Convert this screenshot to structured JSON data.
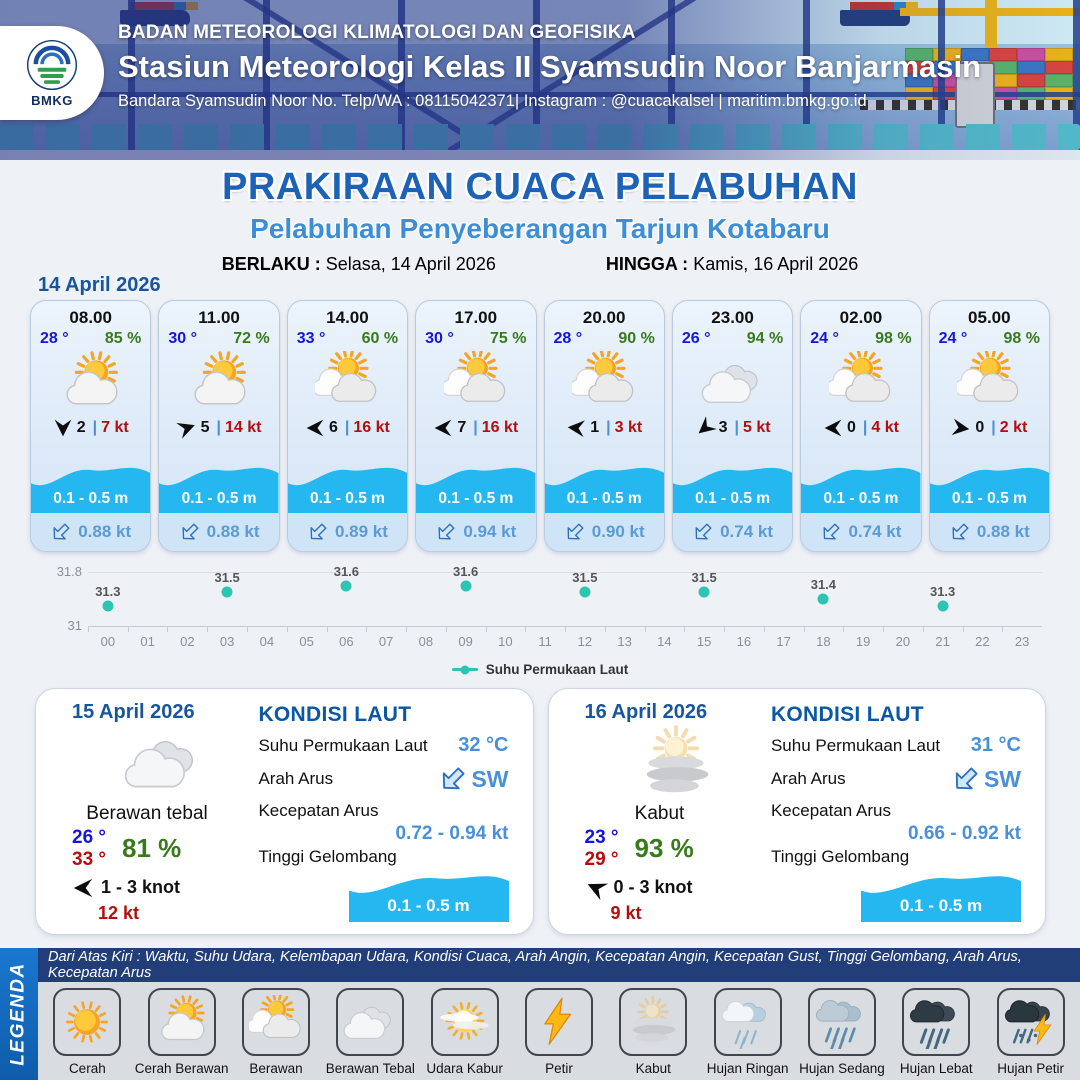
{
  "header": {
    "org": "BADAN METEOROLOGI KLIMATOLOGI DAN GEOFISIKA",
    "station": "Stasiun Meteorologi Kelas II Syamsudin Noor Banjarmasin",
    "contact": "Bandara Syamsudin Noor No. Telp/WA : 08115042371| Instagram : @cuacakalsel | maritim.bmkg.go.id",
    "logo_text": "BMKG"
  },
  "title": {
    "main": "PRAKIRAAN CUACA PELABUHAN",
    "subtitle": "Pelabuhan Penyeberangan Tarjun Kotabaru",
    "berlaku_label": "BERLAKU :",
    "berlaku_value": "Selasa, 14 April 2026",
    "hingga_label": "HINGGA :",
    "hingga_value": "Kamis, 16 April 2026"
  },
  "forecast": {
    "date": "14 April 2026",
    "sep": "|",
    "cards": [
      {
        "time": "08.00",
        "temp": "28 °",
        "humidity": "85 %",
        "icon": "cerah-berawan",
        "wind_dir_deg": 90,
        "wind_num": "2",
        "wind_speed": "7 kt",
        "wave": "0.1 - 0.5 m",
        "current": "0.88 kt"
      },
      {
        "time": "11.00",
        "temp": "30 °",
        "humidity": "72 %",
        "icon": "cerah-berawan",
        "wind_dir_deg": -20,
        "wind_num": "5",
        "wind_speed": "14 kt",
        "wave": "0.1 - 0.5 m",
        "current": "0.88 kt"
      },
      {
        "time": "14.00",
        "temp": "33 °",
        "humidity": "60 %",
        "icon": "berawan",
        "wind_dir_deg": 180,
        "wind_num": "6",
        "wind_speed": "16 kt",
        "wave": "0.1 - 0.5 m",
        "current": "0.89 kt"
      },
      {
        "time": "17.00",
        "temp": "30 °",
        "humidity": "75 %",
        "icon": "berawan",
        "wind_dir_deg": 180,
        "wind_num": "7",
        "wind_speed": "16 kt",
        "wave": "0.1 - 0.5 m",
        "current": "0.94 kt"
      },
      {
        "time": "20.00",
        "temp": "28 °",
        "humidity": "90 %",
        "icon": "berawan",
        "wind_dir_deg": 185,
        "wind_num": "1",
        "wind_speed": "3 kt",
        "wave": "0.1 - 0.5 m",
        "current": "0.90 kt"
      },
      {
        "time": "23.00",
        "temp": "26 °",
        "humidity": "94 %",
        "icon": "berawan-tebal",
        "wind_dir_deg": 140,
        "wind_num": "3",
        "wind_speed": "5 kt",
        "wave": "0.1 - 0.5 m",
        "current": "0.74 kt"
      },
      {
        "time": "02.00",
        "temp": "24 °",
        "humidity": "98 %",
        "icon": "berawan",
        "wind_dir_deg": 180,
        "wind_num": "0",
        "wind_speed": "4 kt",
        "wave": "0.1 - 0.5 m",
        "current": "0.74 kt"
      },
      {
        "time": "05.00",
        "temp": "24 °",
        "humidity": "98 %",
        "icon": "berawan",
        "wind_dir_deg": 8,
        "wind_num": "0",
        "wind_speed": "2 kt",
        "wave": "0.1 - 0.5 m",
        "current": "0.88 kt"
      }
    ]
  },
  "chart_data": {
    "type": "scatter",
    "title": "",
    "legend": "Suhu Permukaan Laut",
    "x": [
      0,
      3,
      6,
      9,
      12,
      15,
      18,
      21
    ],
    "values": [
      31.3,
      31.5,
      31.6,
      31.6,
      31.5,
      31.5,
      31.4,
      31.3
    ],
    "x_ticks": [
      "00",
      "01",
      "02",
      "03",
      "04",
      "05",
      "06",
      "07",
      "08",
      "09",
      "10",
      "11",
      "12",
      "13",
      "14",
      "15",
      "16",
      "17",
      "18",
      "19",
      "20",
      "21",
      "22",
      "23"
    ],
    "ylim": [
      31,
      31.8
    ],
    "y_ticks": [
      31.8,
      31
    ],
    "grid": true,
    "legend_position": "bottom-center",
    "point_color": "#2cc5b2"
  },
  "day_cards": [
    {
      "date": "15 April 2026",
      "icon": "berawan-tebal",
      "condition": "Berawan tebal",
      "temp_min": "26 °",
      "temp_max": "33 °",
      "humidity": "81 %",
      "wind_dir_deg": 180,
      "wind_range": "1  - 3 knot",
      "gust": "12 kt",
      "kondisi_laut": {
        "heading": "KONDISI LAUT",
        "sst_label": "Suhu Permukaan Laut",
        "sst": "32 °C",
        "arah_label": "Arah Arus",
        "arah": "SW",
        "kecepatan_label": "Kecepatan Arus",
        "kecepatan": "0.72 - 0.94 kt",
        "gelombang_label": "Tinggi Gelombang",
        "gelombang": "0.1 - 0.5 m"
      }
    },
    {
      "date": "16 April 2026",
      "icon": "kabut",
      "condition": "Kabut",
      "temp_min": "23 °",
      "temp_max": "29 °",
      "humidity": "93 %",
      "wind_dir_deg": 205,
      "wind_range": "0  - 3 knot",
      "gust": "9 kt",
      "kondisi_laut": {
        "heading": "KONDISI LAUT",
        "sst_label": "Suhu Permukaan Laut",
        "sst": "31 °C",
        "arah_label": "Arah Arus",
        "arah": "SW",
        "kecepatan_label": "Kecepatan Arus",
        "kecepatan": "0.66 - 0.92 kt",
        "gelombang_label": "Tinggi Gelombang",
        "gelombang": "0.1 - 0.5 m"
      }
    }
  ],
  "legend": {
    "vertical_label": "LEGENDA",
    "description": "Dari Atas Kiri : Waktu, Suhu Udara, Kelembapan Udara, Kondisi Cuaca, Arah Angin, Kecepatan Angin, Kecepatan Gust, Tinggi Gelombang, Arah Arus, Kecepatan Arus",
    "items": [
      {
        "label": "Cerah",
        "icon": "cerah"
      },
      {
        "label": "Cerah Berawan",
        "icon": "cerah-berawan"
      },
      {
        "label": "Berawan",
        "icon": "berawan"
      },
      {
        "label": "Berawan Tebal",
        "icon": "berawan-tebal"
      },
      {
        "label": "Udara Kabur",
        "icon": "udara-kabur"
      },
      {
        "label": "Petir",
        "icon": "petir"
      },
      {
        "label": "Kabut",
        "icon": "kabut"
      },
      {
        "label": "Hujan Ringan",
        "icon": "hujan-ringan"
      },
      {
        "label": "Hujan Sedang",
        "icon": "hujan-sedang"
      },
      {
        "label": "Hujan Lebat",
        "icon": "hujan-lebat"
      },
      {
        "label": "Hujan Petir",
        "icon": "hujan-petir"
      }
    ]
  },
  "colors": {
    "title_blue": "#1c63b7",
    "subtitle_blue": "#3e8ed6",
    "date_blue": "#17559e",
    "temp_blue": "#1515dd",
    "humidity_green": "#3a7a1e",
    "speed_red": "#b50d0d",
    "wave_cyan": "#25b7f0",
    "current_blue": "#5b9bd5",
    "point_teal": "#2cc5b2",
    "kondisi_blue": "#0a57a5",
    "value_blue": "#4a90d9"
  }
}
